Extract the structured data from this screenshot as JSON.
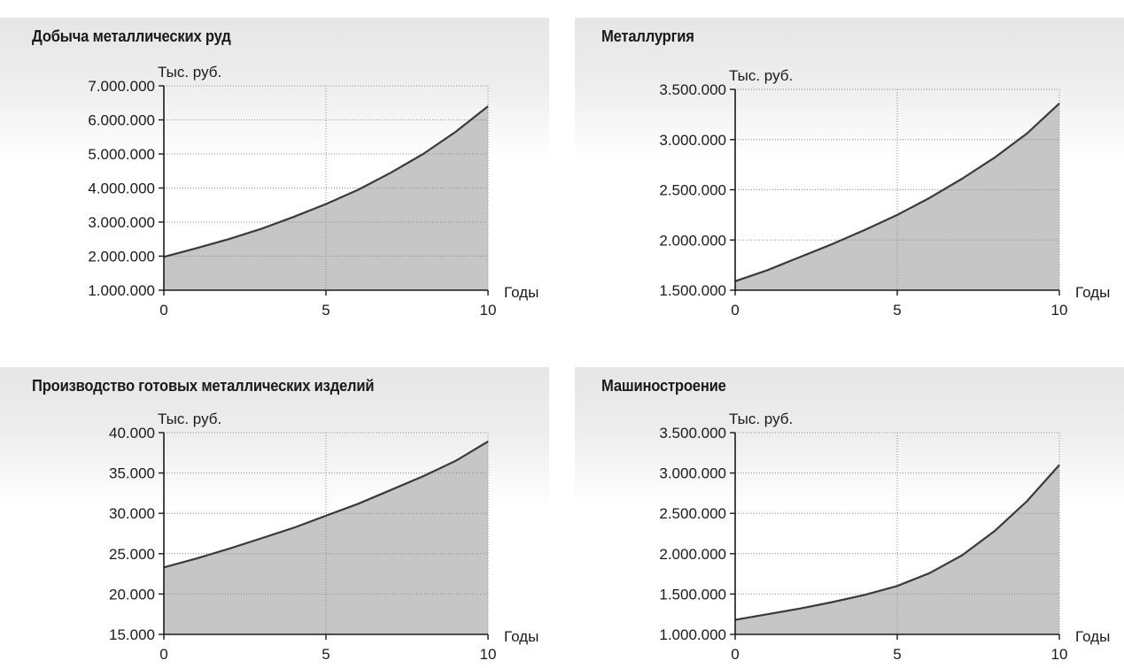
{
  "chart_data": [
    {
      "type": "area",
      "title": "Добыча металлических руд",
      "ylabel": "Тыс. руб.",
      "xlabel": "Годы",
      "ylim": [
        1000000,
        7000000
      ],
      "yticks": [
        1000000,
        2000000,
        3000000,
        4000000,
        5000000,
        6000000,
        7000000
      ],
      "ytick_labels": [
        "1.000.000",
        "2.000.000",
        "3.000.000",
        "4.000.000",
        "5.000.000",
        "6.000.000",
        "7.000.000"
      ],
      "xlim": [
        0,
        10
      ],
      "xticks": [
        0,
        5,
        10
      ],
      "xtick_labels": [
        "0",
        "5",
        "10"
      ],
      "x": [
        0,
        1,
        2,
        3,
        4,
        5,
        6,
        7,
        8,
        9,
        10
      ],
      "values": [
        1980000,
        2230000,
        2500000,
        2800000,
        3150000,
        3530000,
        3950000,
        4450000,
        5000000,
        5650000,
        6400000
      ],
      "grid": true
    },
    {
      "type": "area",
      "title": "Металлургия",
      "ylabel": "Тыс. руб.",
      "xlabel": "Годы",
      "ylim": [
        1500000,
        3500000
      ],
      "yticks": [
        1500000,
        2000000,
        2500000,
        3000000,
        3500000
      ],
      "ytick_labels": [
        "1.500.000",
        "2.000.000",
        "2.500.000",
        "3.000.000",
        "3.500.000"
      ],
      "xlim": [
        0,
        10
      ],
      "xticks": [
        0,
        5,
        10
      ],
      "xtick_labels": [
        "0",
        "5",
        "10"
      ],
      "x": [
        0,
        1,
        2,
        3,
        4,
        5,
        6,
        7,
        8,
        9,
        10
      ],
      "values": [
        1590000,
        1700000,
        1830000,
        1960000,
        2100000,
        2250000,
        2420000,
        2610000,
        2820000,
        3060000,
        3360000
      ],
      "grid": true
    },
    {
      "type": "area",
      "title": "Производство готовых металлических изделий",
      "ylabel": "Тыс. руб.",
      "xlabel": "Годы",
      "ylim": [
        15000,
        40000
      ],
      "yticks": [
        15000,
        20000,
        25000,
        30000,
        35000,
        40000
      ],
      "ytick_labels": [
        "15.000",
        "20.000",
        "25.000",
        "30.000",
        "35.000",
        "40.000"
      ],
      "xlim": [
        0,
        10
      ],
      "xticks": [
        0,
        5,
        10
      ],
      "xtick_labels": [
        "0",
        "5",
        "10"
      ],
      "x": [
        0,
        1,
        2,
        3,
        4,
        5,
        6,
        7,
        8,
        9,
        10
      ],
      "values": [
        23300,
        24400,
        25600,
        26900,
        28200,
        29700,
        31200,
        32900,
        34600,
        36500,
        38900
      ],
      "grid": true
    },
    {
      "type": "area",
      "title": "Машиностроение",
      "ylabel": "Тыс. руб.",
      "xlabel": "Годы",
      "ylim": [
        1000000,
        3500000
      ],
      "yticks": [
        1000000,
        1500000,
        2000000,
        2500000,
        3000000,
        3500000
      ],
      "ytick_labels": [
        "1.000.000",
        "1.500.000",
        "2.000.000",
        "2.500.000",
        "3.000.000",
        "3.500.000"
      ],
      "xlim": [
        0,
        10
      ],
      "xticks": [
        0,
        5,
        10
      ],
      "xtick_labels": [
        "0",
        "5",
        "10"
      ],
      "x": [
        0,
        1,
        2,
        3,
        4,
        5,
        6,
        7,
        8,
        9,
        10
      ],
      "values": [
        1180000,
        1250000,
        1320000,
        1400000,
        1490000,
        1600000,
        1760000,
        1980000,
        2280000,
        2650000,
        3100000
      ],
      "grid": true
    }
  ]
}
